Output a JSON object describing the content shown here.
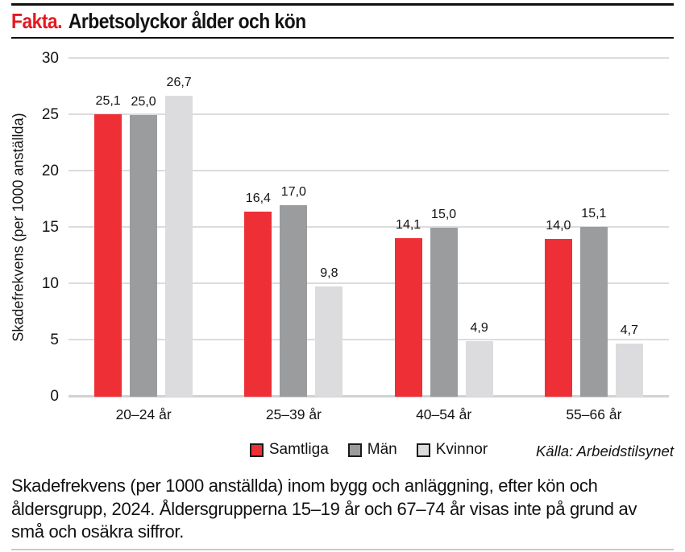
{
  "header": {
    "kicker": "Fakta.",
    "title": "Arbetsolyckor ålder och kön"
  },
  "chart_data": {
    "type": "bar",
    "title": "Arbetsolyckor ålder och kön",
    "ylabel": "Skadefrekvens (per 1000 anställda)",
    "xlabel": "",
    "ylim": [
      0,
      30
    ],
    "yticks": [
      0,
      5,
      10,
      15,
      20,
      25,
      30
    ],
    "grid": true,
    "legend_position": "bottom",
    "decimal_separator": ",",
    "categories": [
      "20–24 år",
      "25–39 år",
      "40–54 år",
      "55–66 år"
    ],
    "series": [
      {
        "name": "Samtliga",
        "color": "#ee3036",
        "values": [
          25.1,
          16.4,
          14.1,
          14.0
        ]
      },
      {
        "name": "Män",
        "color": "#9a9c9e",
        "values": [
          25.0,
          17.0,
          15.0,
          15.1
        ]
      },
      {
        "name": "Kvinnor",
        "color": "#dcdcde",
        "values": [
          26.7,
          9.8,
          4.9,
          4.7
        ]
      }
    ],
    "colors": {
      "grid": "#dcdcdc",
      "baseline": "#d2d2d2",
      "kicker_red": "#e31920"
    }
  },
  "source": "Källa: Arbeidstilsynet",
  "caption": "Skadefrekvens (per 1000 anställda) inom bygg och anläggning, efter kön och åldersgrupp, 2024. Åldersgrupperna 15–19 år och 67–74 år visas inte på grund av små och osäkra siffror."
}
